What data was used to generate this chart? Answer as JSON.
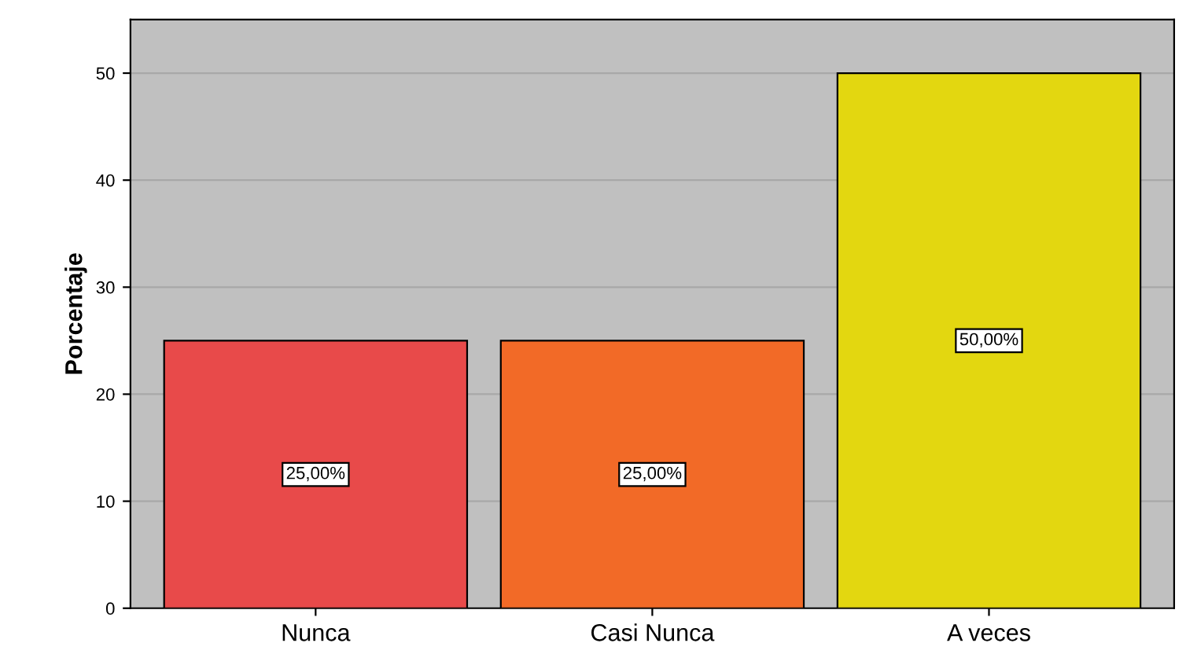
{
  "chart_data": {
    "type": "bar",
    "ylabel": "Porcentaje",
    "categories": [
      "Nunca",
      "Casi Nunca",
      "A veces"
    ],
    "values": [
      25,
      25,
      50
    ],
    "colors": [
      "#e84a4a",
      "#f26a27",
      "#e3d710"
    ],
    "value_labels": [
      "25,00%",
      "25,00%",
      "50,00%"
    ],
    "ylim": [
      0,
      55
    ],
    "yticks": [
      0,
      10,
      20,
      30,
      40,
      50
    ],
    "grid": "y"
  }
}
